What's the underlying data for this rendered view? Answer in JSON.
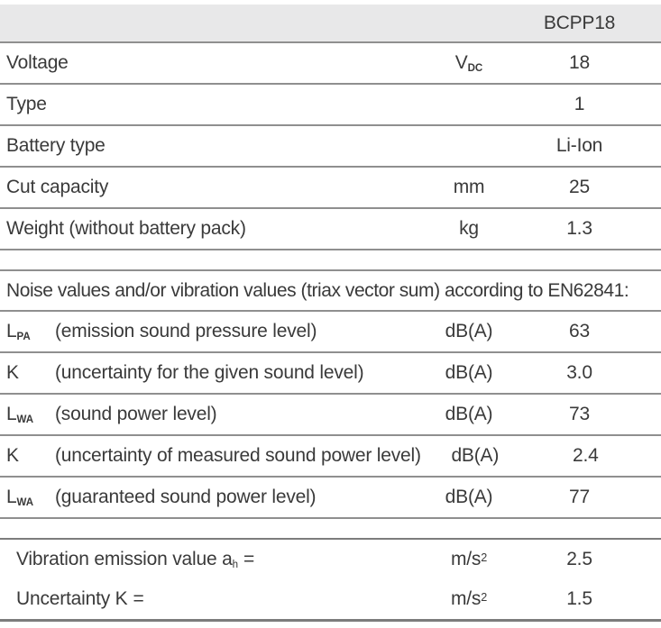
{
  "header": {
    "model": "BCPP18"
  },
  "colors": {
    "header_background": "#e8e8e9",
    "rule_line": "#8f8f8f",
    "rule_line_dark": "#7c7c7c",
    "text": "#3a3a3a"
  },
  "specs": {
    "rows": [
      {
        "label": "Voltage",
        "unit_main": "V",
        "unit_sub": "DC",
        "value": "18"
      },
      {
        "label": "Type",
        "unit_main": "",
        "unit_sub": "",
        "value": "1"
      },
      {
        "label": "Battery type",
        "unit_main": "",
        "unit_sub": "",
        "value": "Li-Ion"
      },
      {
        "label": "Cut capacity",
        "unit_main": "mm",
        "unit_sub": "",
        "value": "25"
      },
      {
        "label": "Weight (without battery pack)",
        "unit_main": "kg",
        "unit_sub": "",
        "value": "1.3"
      }
    ]
  },
  "noise": {
    "heading": "Noise values and/or vibration values (triax vector sum) according to EN62841:",
    "rows": [
      {
        "symbol_main": "L",
        "symbol_sub": "PA",
        "description": "(emission sound pressure level)",
        "unit": "dB(A)",
        "value": "63"
      },
      {
        "symbol_main": "K",
        "symbol_sub": "",
        "description": "(uncertainty for the given sound level)",
        "unit": "dB(A)",
        "value": "3.0"
      },
      {
        "symbol_main": "L",
        "symbol_sub": "WA",
        "description": "(sound power level)",
        "unit": "dB(A)",
        "value": "73"
      },
      {
        "symbol_main": "K",
        "symbol_sub": "",
        "description": "(uncertainty of measured sound power level)",
        "unit": "dB(A)",
        "value": "2.4"
      },
      {
        "symbol_main": "L",
        "symbol_sub": "WA",
        "description": "(guaranteed sound power level)",
        "unit": "dB(A)",
        "value": "77"
      }
    ]
  },
  "vibration": {
    "rows": [
      {
        "label_main": "Vibration emission value a",
        "label_sub": "h",
        "label_end": "=",
        "unit_main": "m/s",
        "unit_sup": "2",
        "value": "2.5"
      },
      {
        "label_main": "Uncertainty K",
        "label_sub": "",
        "label_end": "=",
        "unit_main": "m/s",
        "unit_sup": "2",
        "value": "1.5"
      }
    ]
  }
}
